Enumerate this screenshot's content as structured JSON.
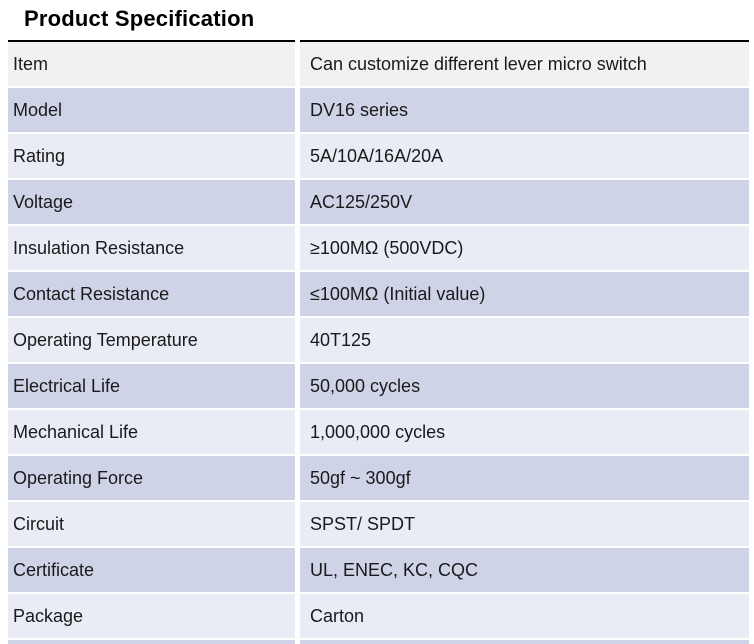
{
  "page": {
    "title": "Product Specification"
  },
  "colors": {
    "header_row_bg": "#f1f1f1",
    "stripe_dark": "#cfd3e8",
    "stripe_light": "#e9ebf5",
    "top_rule": "#000000",
    "text": "#1a1a1a"
  },
  "table": {
    "rows": [
      {
        "label": "Item",
        "value": "Can customize different lever micro switch"
      },
      {
        "label": "Model",
        "value": "DV16 series"
      },
      {
        "label": "Rating",
        "value": "5A/10A/16A/20A"
      },
      {
        "label": "Voltage",
        "value": "AC125/250V"
      },
      {
        "label": "Insulation Resistance",
        "value": "≥100MΩ (500VDC)"
      },
      {
        "label": "Contact Resistance",
        "value": "≤100MΩ (Initial value)"
      },
      {
        "label": "Operating Temperature",
        "value": "40T125"
      },
      {
        "label": "Electrical Life",
        "value": "50,000 cycles"
      },
      {
        "label": "Mechanical Life",
        "value": "1,000,000 cycles"
      },
      {
        "label": "Operating Force",
        "value": "50gf ~  300gf"
      },
      {
        "label": "Circuit",
        "value": "SPST/ SPDT"
      },
      {
        "label": "Certificate",
        "value": "UL, ENEC, KC, CQC"
      },
      {
        "label": "Package",
        "value": "Carton"
      }
    ]
  }
}
